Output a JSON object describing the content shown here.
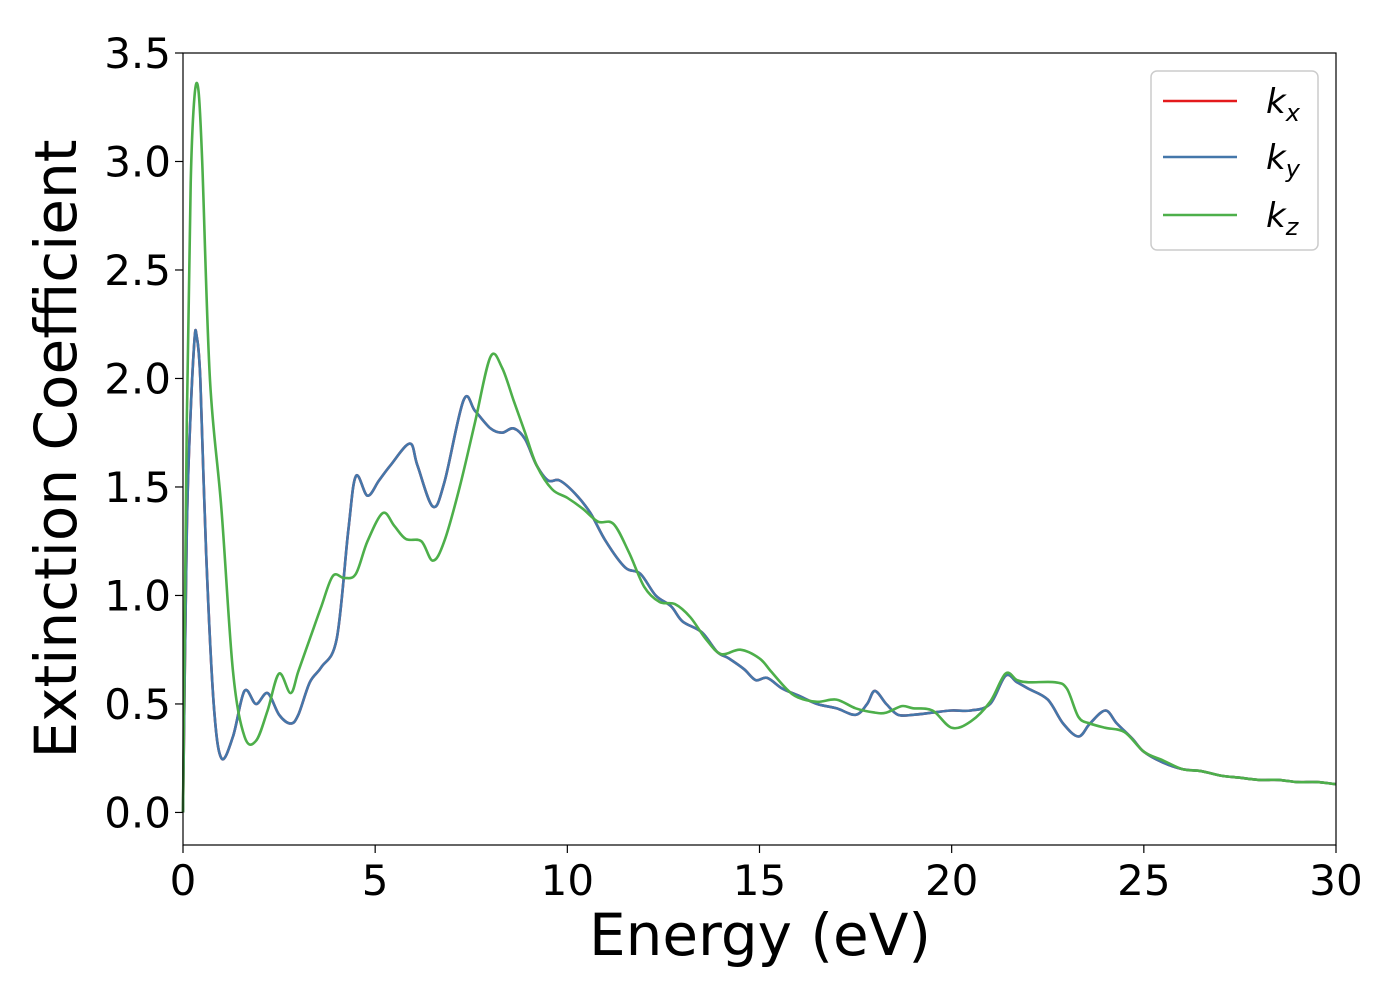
{
  "chart_data": {
    "type": "line",
    "xlabel": "Energy (eV)",
    "ylabel": "Extinction Coefficient",
    "xlim": [
      0,
      30
    ],
    "ylim": [
      -0.15,
      3.5
    ],
    "xticks": [
      0,
      5,
      10,
      15,
      20,
      25,
      30
    ],
    "xtick_labels": [
      "0",
      "5",
      "10",
      "15",
      "20",
      "25",
      "30"
    ],
    "yticks": [
      0.0,
      0.5,
      1.0,
      1.5,
      2.0,
      2.5,
      3.0,
      3.5
    ],
    "ytick_labels": [
      "0.0",
      "0.5",
      "1.0",
      "1.5",
      "2.0",
      "2.5",
      "3.0",
      "3.5"
    ],
    "grid": false,
    "legend_position": "top-right",
    "series": [
      {
        "name": "k",
        "subscript": "x",
        "color": "#e41a1c",
        "x": [
          0,
          0.1,
          0.2,
          0.3,
          0.35,
          0.45,
          0.6,
          0.8,
          1.0,
          1.3,
          1.6,
          1.9,
          2.2,
          2.5,
          2.8,
          3.0,
          3.3,
          3.6,
          4.0,
          4.3,
          4.5,
          4.8,
          5.1,
          5.4,
          5.9,
          6.1,
          6.5,
          6.8,
          7.3,
          7.6,
          8.0,
          8.3,
          8.6,
          8.9,
          9.2,
          9.5,
          9.8,
          10.2,
          10.6,
          11.0,
          11.5,
          11.9,
          12.3,
          12.7,
          13.0,
          13.5,
          13.9,
          14.2,
          14.6,
          14.9,
          15.2,
          15.6,
          16.0,
          16.5,
          17.0,
          17.5,
          17.8,
          18.0,
          18.3,
          18.6,
          19.0,
          19.5,
          20.0,
          20.5,
          21.0,
          21.4,
          21.7,
          22.0,
          22.5,
          22.9,
          23.3,
          23.6,
          24.0,
          24.3,
          24.7,
          25.0,
          25.5,
          26.0,
          26.5,
          27.0,
          27.5,
          28.0,
          28.5,
          29.0,
          29.5,
          30.0
        ],
        "y": [
          0.0,
          1.3,
          1.85,
          2.18,
          2.2,
          2.0,
          1.2,
          0.5,
          0.25,
          0.35,
          0.56,
          0.5,
          0.55,
          0.45,
          0.41,
          0.45,
          0.6,
          0.67,
          0.8,
          1.3,
          1.55,
          1.46,
          1.53,
          1.6,
          1.7,
          1.6,
          1.41,
          1.52,
          1.9,
          1.85,
          1.77,
          1.75,
          1.77,
          1.72,
          1.6,
          1.53,
          1.53,
          1.47,
          1.38,
          1.25,
          1.13,
          1.1,
          1.0,
          0.95,
          0.88,
          0.83,
          0.74,
          0.71,
          0.66,
          0.61,
          0.62,
          0.57,
          0.54,
          0.5,
          0.48,
          0.45,
          0.5,
          0.56,
          0.5,
          0.45,
          0.45,
          0.46,
          0.47,
          0.47,
          0.5,
          0.63,
          0.6,
          0.57,
          0.52,
          0.41,
          0.35,
          0.41,
          0.47,
          0.41,
          0.34,
          0.28,
          0.23,
          0.2,
          0.19,
          0.17,
          0.16,
          0.15,
          0.15,
          0.14,
          0.14,
          0.13
        ]
      },
      {
        "name": "k",
        "subscript": "y",
        "color": "#4477aa",
        "x": [
          0,
          0.1,
          0.2,
          0.3,
          0.35,
          0.45,
          0.6,
          0.8,
          1.0,
          1.3,
          1.6,
          1.9,
          2.2,
          2.5,
          2.8,
          3.0,
          3.3,
          3.6,
          4.0,
          4.3,
          4.5,
          4.8,
          5.1,
          5.4,
          5.9,
          6.1,
          6.5,
          6.8,
          7.3,
          7.6,
          8.0,
          8.3,
          8.6,
          8.9,
          9.2,
          9.5,
          9.8,
          10.2,
          10.6,
          11.0,
          11.5,
          11.9,
          12.3,
          12.7,
          13.0,
          13.5,
          13.9,
          14.2,
          14.6,
          14.9,
          15.2,
          15.6,
          16.0,
          16.5,
          17.0,
          17.5,
          17.8,
          18.0,
          18.3,
          18.6,
          19.0,
          19.5,
          20.0,
          20.5,
          21.0,
          21.4,
          21.7,
          22.0,
          22.5,
          22.9,
          23.3,
          23.6,
          24.0,
          24.3,
          24.7,
          25.0,
          25.5,
          26.0,
          26.5,
          27.0,
          27.5,
          28.0,
          28.5,
          29.0,
          29.5,
          30.0
        ],
        "y": [
          0.0,
          1.3,
          1.85,
          2.18,
          2.2,
          2.0,
          1.2,
          0.5,
          0.25,
          0.35,
          0.56,
          0.5,
          0.55,
          0.45,
          0.41,
          0.45,
          0.6,
          0.67,
          0.8,
          1.3,
          1.55,
          1.46,
          1.53,
          1.6,
          1.7,
          1.6,
          1.41,
          1.52,
          1.9,
          1.85,
          1.77,
          1.75,
          1.77,
          1.72,
          1.6,
          1.53,
          1.53,
          1.47,
          1.38,
          1.25,
          1.13,
          1.1,
          1.0,
          0.95,
          0.88,
          0.83,
          0.74,
          0.71,
          0.66,
          0.61,
          0.62,
          0.57,
          0.54,
          0.5,
          0.48,
          0.45,
          0.5,
          0.56,
          0.5,
          0.45,
          0.45,
          0.46,
          0.47,
          0.47,
          0.5,
          0.63,
          0.6,
          0.57,
          0.52,
          0.41,
          0.35,
          0.41,
          0.47,
          0.41,
          0.34,
          0.28,
          0.23,
          0.2,
          0.19,
          0.17,
          0.16,
          0.15,
          0.15,
          0.14,
          0.14,
          0.13
        ]
      },
      {
        "name": "k",
        "subscript": "z",
        "color": "#4daf4a",
        "x": [
          0,
          0.1,
          0.2,
          0.3,
          0.4,
          0.5,
          0.7,
          1.0,
          1.3,
          1.6,
          1.9,
          2.2,
          2.5,
          2.8,
          3.0,
          3.3,
          3.6,
          3.9,
          4.2,
          4.5,
          4.8,
          5.2,
          5.5,
          5.8,
          6.2,
          6.5,
          6.8,
          7.2,
          7.6,
          8.0,
          8.3,
          8.6,
          8.9,
          9.2,
          9.6,
          10.0,
          10.4,
          10.8,
          11.2,
          11.6,
          12.0,
          12.4,
          12.8,
          13.2,
          13.6,
          14.0,
          14.5,
          15.0,
          15.3,
          15.7,
          16.0,
          16.5,
          17.0,
          17.5,
          18.0,
          18.3,
          18.7,
          19.0,
          19.5,
          20.0,
          20.5,
          21.0,
          21.4,
          21.7,
          22.0,
          22.7,
          23.0,
          23.3,
          23.6,
          24.0,
          24.5,
          25.0,
          25.5,
          26.0,
          26.5,
          27.0,
          27.5,
          28.0,
          28.5,
          29.0,
          29.5,
          30.0
        ],
        "y": [
          0.0,
          1.8,
          2.9,
          3.3,
          3.33,
          3.0,
          2.0,
          1.4,
          0.65,
          0.35,
          0.33,
          0.47,
          0.64,
          0.55,
          0.65,
          0.8,
          0.95,
          1.09,
          1.08,
          1.1,
          1.25,
          1.38,
          1.32,
          1.26,
          1.25,
          1.16,
          1.25,
          1.5,
          1.8,
          2.1,
          2.05,
          1.9,
          1.75,
          1.6,
          1.49,
          1.45,
          1.4,
          1.34,
          1.33,
          1.2,
          1.04,
          0.97,
          0.96,
          0.9,
          0.8,
          0.73,
          0.75,
          0.71,
          0.65,
          0.57,
          0.53,
          0.51,
          0.52,
          0.48,
          0.46,
          0.46,
          0.49,
          0.48,
          0.47,
          0.39,
          0.42,
          0.51,
          0.64,
          0.61,
          0.6,
          0.6,
          0.57,
          0.44,
          0.41,
          0.39,
          0.37,
          0.28,
          0.24,
          0.2,
          0.19,
          0.17,
          0.16,
          0.15,
          0.15,
          0.14,
          0.14,
          0.13
        ]
      }
    ]
  }
}
